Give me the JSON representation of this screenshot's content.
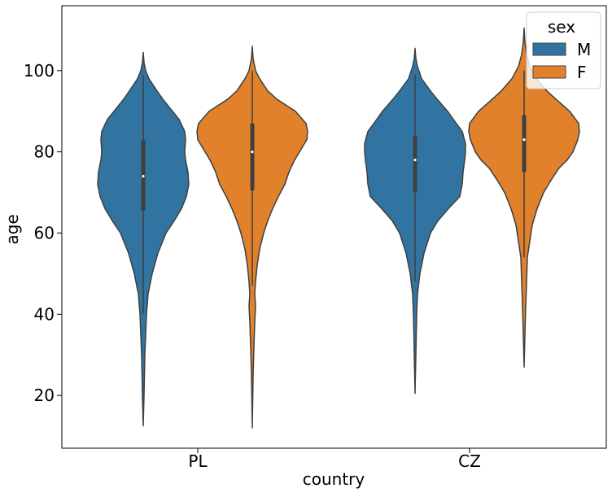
{
  "chart_data": {
    "type": "violin",
    "xlabel": "country",
    "ylabel": "age",
    "categories": [
      "PL",
      "CZ"
    ],
    "ylim": [
      7,
      116
    ],
    "yticks": [
      20,
      40,
      60,
      80,
      100
    ],
    "grid": false,
    "legend": {
      "title": "sex",
      "position": "top-right",
      "entries": [
        {
          "name": "M",
          "color": "#3274a1"
        },
        {
          "name": "F",
          "color": "#e1812c"
        }
      ]
    },
    "series": [
      {
        "name": "M",
        "color": "#3274a1",
        "violins": [
          {
            "category": "PL",
            "min": 12.5,
            "q1": 65.5,
            "median": 74,
            "q3": 83,
            "max": 104.5,
            "whisker_low": 40,
            "whisker_high": 99,
            "density": [
              [
                12.5,
                0
              ],
              [
                20,
                1
              ],
              [
                30,
                2
              ],
              [
                40,
                4
              ],
              [
                45,
                6
              ],
              [
                50,
                11
              ],
              [
                55,
                18
              ],
              [
                60,
                28
              ],
              [
                63,
                38
              ],
              [
                66,
                47
              ],
              [
                69,
                53
              ],
              [
                72,
                56
              ],
              [
                75,
                55
              ],
              [
                78,
                52
              ],
              [
                80,
                51
              ],
              [
                83,
                52
              ],
              [
                85,
                51
              ],
              [
                88,
                44
              ],
              [
                90,
                36
              ],
              [
                93,
                24
              ],
              [
                95,
                17
              ],
              [
                98,
                7
              ],
              [
                100,
                3
              ],
              [
                102,
                1
              ],
              [
                104.5,
                0
              ]
            ]
          },
          {
            "category": "CZ",
            "min": 20.5,
            "q1": 70,
            "median": 78,
            "q3": 84,
            "max": 105.5,
            "whisker_low": 48,
            "whisker_high": 99,
            "density": [
              [
                20.5,
                0
              ],
              [
                30,
                1
              ],
              [
                40,
                2
              ],
              [
                45,
                3
              ],
              [
                50,
                6
              ],
              [
                55,
                11
              ],
              [
                60,
                19
              ],
              [
                63,
                28
              ],
              [
                66,
                41
              ],
              [
                69,
                55
              ],
              [
                72,
                58
              ],
              [
                75,
                59
              ],
              [
                78,
                61
              ],
              [
                80,
                62
              ],
              [
                82,
                62
              ],
              [
                85,
                58
              ],
              [
                88,
                47
              ],
              [
                90,
                40
              ],
              [
                93,
                27
              ],
              [
                95,
                19
              ],
              [
                98,
                8
              ],
              [
                101,
                3
              ],
              [
                103,
                1
              ],
              [
                105.5,
                0
              ]
            ]
          }
        ]
      },
      {
        "name": "F",
        "color": "#e1812c",
        "violins": [
          {
            "category": "PL",
            "min": 12,
            "q1": 70.5,
            "median": 80,
            "q3": 87,
            "max": 106,
            "whisker_low": 47,
            "whisker_high": 100,
            "density": [
              [
                12,
                0
              ],
              [
                25,
                1
              ],
              [
                32,
                2
              ],
              [
                38,
                3
              ],
              [
                42,
                4
              ],
              [
                45,
                3
              ],
              [
                48,
                4
              ],
              [
                52,
                6
              ],
              [
                56,
                9
              ],
              [
                60,
                14
              ],
              [
                63,
                19
              ],
              [
                66,
                25
              ],
              [
                69,
                32
              ],
              [
                72,
                40
              ],
              [
                75,
                45
              ],
              [
                78,
                52
              ],
              [
                80,
                58
              ],
              [
                83,
                67
              ],
              [
                85,
                68
              ],
              [
                87,
                66
              ],
              [
                90,
                53
              ],
              [
                93,
                30
              ],
              [
                95,
                19
              ],
              [
                98,
                9
              ],
              [
                100,
                4
              ],
              [
                103,
                1
              ],
              [
                106,
                0
              ]
            ]
          },
          {
            "category": "CZ",
            "min": 27,
            "q1": 75,
            "median": 83,
            "q3": 89,
            "max": 110.5,
            "whisker_low": 54,
            "whisker_high": 100,
            "density": [
              [
                27,
                0
              ],
              [
                35,
                1
              ],
              [
                42,
                2
              ],
              [
                48,
                3
              ],
              [
                54,
                4
              ],
              [
                58,
                7
              ],
              [
                62,
                10
              ],
              [
                66,
                16
              ],
              [
                70,
                24
              ],
              [
                73,
                33
              ],
              [
                76,
                43
              ],
              [
                78,
                53
              ],
              [
                80,
                60
              ],
              [
                83,
                66
              ],
              [
                85,
                68
              ],
              [
                87,
                67
              ],
              [
                90,
                56
              ],
              [
                93,
                39
              ],
              [
                95,
                28
              ],
              [
                98,
                15
              ],
              [
                101,
                7
              ],
              [
                104,
                3
              ],
              [
                107,
                1
              ],
              [
                110.5,
                0
              ]
            ]
          }
        ]
      }
    ]
  }
}
